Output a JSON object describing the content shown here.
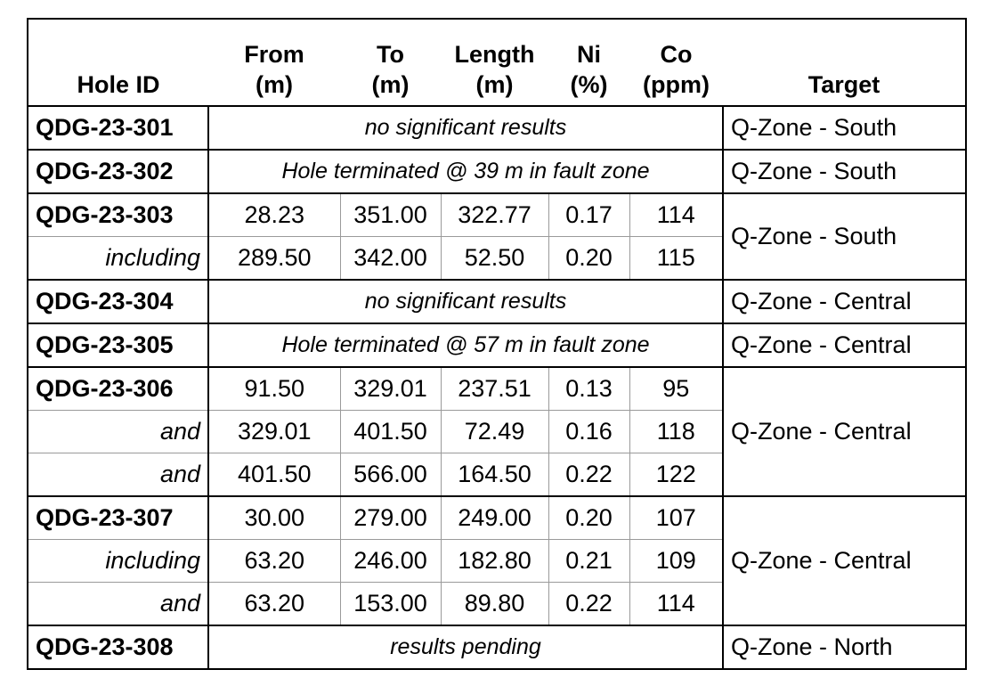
{
  "table": {
    "columns": [
      {
        "lines": [
          "Hole ID"
        ]
      },
      {
        "lines": [
          "From",
          "(m)"
        ]
      },
      {
        "lines": [
          "To",
          "(m)"
        ]
      },
      {
        "lines": [
          "Length",
          "(m)"
        ]
      },
      {
        "lines": [
          "Ni",
          "(%)"
        ]
      },
      {
        "lines": [
          "Co",
          "(ppm)"
        ]
      },
      {
        "lines": [
          "Target"
        ]
      }
    ],
    "groups": [
      {
        "target": "Q-Zone - South",
        "rows": [
          {
            "label": "QDG-23-301",
            "note": "no significant results"
          }
        ]
      },
      {
        "target": "Q-Zone - South",
        "rows": [
          {
            "label": "QDG-23-302",
            "note": "Hole terminated @ 39 m in fault zone"
          }
        ]
      },
      {
        "target": "Q-Zone - South",
        "rows": [
          {
            "label": "QDG-23-303",
            "cells": [
              "28.23",
              "351.00",
              "322.77",
              "0.17",
              "114"
            ]
          },
          {
            "label": "including",
            "cells": [
              "289.50",
              "342.00",
              "52.50",
              "0.20",
              "115"
            ]
          }
        ]
      },
      {
        "target": "Q-Zone - Central",
        "rows": [
          {
            "label": "QDG-23-304",
            "note": "no significant results"
          }
        ]
      },
      {
        "target": "Q-Zone - Central",
        "rows": [
          {
            "label": "QDG-23-305",
            "note": "Hole terminated @ 57 m in fault zone"
          }
        ]
      },
      {
        "target": "Q-Zone - Central",
        "rows": [
          {
            "label": "QDG-23-306",
            "cells": [
              "91.50",
              "329.01",
              "237.51",
              "0.13",
              "95"
            ]
          },
          {
            "label": "and",
            "cells": [
              "329.01",
              "401.50",
              "72.49",
              "0.16",
              "118"
            ]
          },
          {
            "label": "and",
            "cells": [
              "401.50",
              "566.00",
              "164.50",
              "0.22",
              "122"
            ]
          }
        ]
      },
      {
        "target": "Q-Zone - Central",
        "rows": [
          {
            "label": "QDG-23-307",
            "cells": [
              "30.00",
              "279.00",
              "249.00",
              "0.20",
              "107"
            ]
          },
          {
            "label": "including",
            "cells": [
              "63.20",
              "246.00",
              "182.80",
              "0.21",
              "109"
            ]
          },
          {
            "label": "and",
            "cells": [
              "63.20",
              "153.00",
              "89.80",
              "0.22",
              "114"
            ]
          }
        ]
      },
      {
        "target": "Q-Zone - North",
        "rows": [
          {
            "label": "QDG-23-308",
            "note": "results pending"
          }
        ]
      }
    ]
  }
}
